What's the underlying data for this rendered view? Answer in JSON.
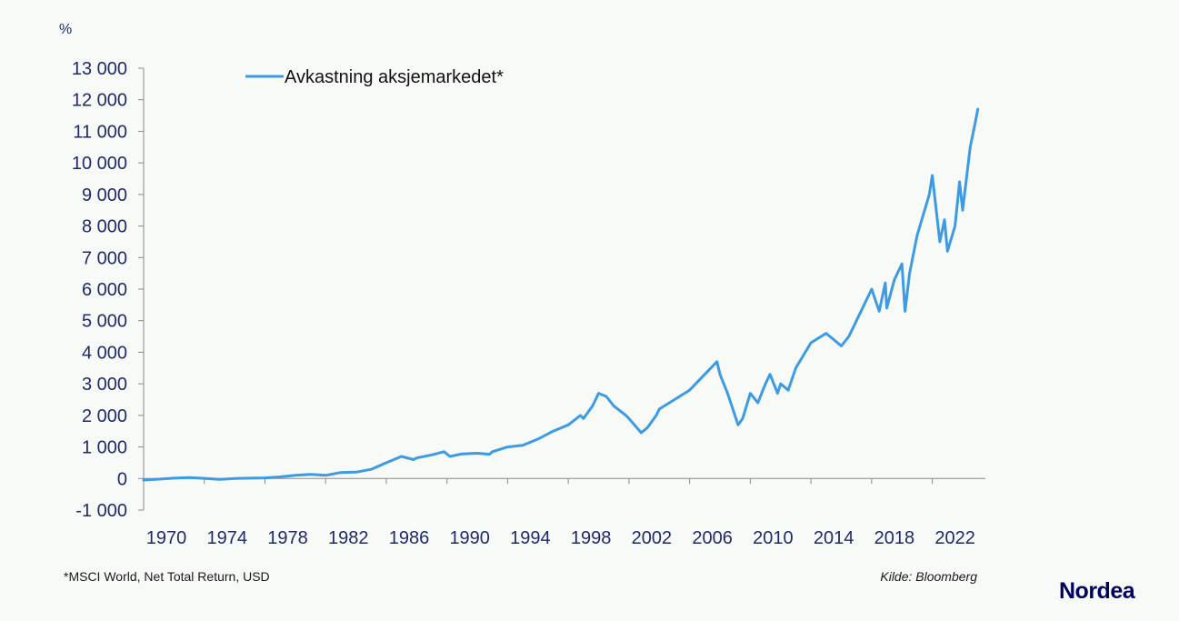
{
  "chart_data": {
    "type": "line",
    "unit_label": "%",
    "ylim": [
      -1000,
      13000
    ],
    "xlim": [
      1970,
      2025.5
    ],
    "y_ticks": [
      -1000,
      0,
      1000,
      2000,
      3000,
      4000,
      5000,
      6000,
      7000,
      8000,
      9000,
      10000,
      11000,
      12000,
      13000
    ],
    "y_tick_labels": [
      "-1 000",
      "0",
      "1 000",
      "2 000",
      "3 000",
      "4 000",
      "5 000",
      "6 000",
      "7 000",
      "8 000",
      "9 000",
      "10 000",
      "11 000",
      "12 000",
      "13 000"
    ],
    "x_ticks": [
      1970,
      1974,
      1978,
      1982,
      1986,
      1990,
      1994,
      1998,
      2002,
      2006,
      2010,
      2014,
      2018,
      2022
    ],
    "x_tick_labels": [
      "1970",
      "1974",
      "1978",
      "1982",
      "1986",
      "1990",
      "1994",
      "1998",
      "2002",
      "2006",
      "2010",
      "2014",
      "2018",
      "2022"
    ],
    "grid": false,
    "legend_position": "top-left",
    "color": "#3d9be3",
    "series": [
      {
        "name": "Avkastning aksjemarkedet*",
        "x": [
          1970,
          1971,
          1972,
          1973,
          1974,
          1975,
          1976,
          1977,
          1978,
          1979,
          1980,
          1981,
          1982,
          1983,
          1984,
          1985,
          1986,
          1986.5,
          1987,
          1987.8,
          1988,
          1989,
          1989.8,
          1990.2,
          1991,
          1992,
          1992.8,
          1993,
          1994,
          1995,
          1996,
          1997,
          1998,
          1998.8,
          1999,
          1999.6,
          2000,
          2000.5,
          2001,
          2001.8,
          2002,
          2002.8,
          2003.2,
          2003.8,
          2004,
          2005,
          2006,
          2007,
          2007.8,
          2008,
          2008.5,
          2009.2,
          2009.5,
          2010,
          2010.5,
          2011,
          2011.3,
          2011.8,
          2012,
          2012.5,
          2013,
          2014,
          2015,
          2015.5,
          2016,
          2016.5,
          2017,
          2018,
          2018.5,
          2018.9,
          2019,
          2019.5,
          2020,
          2020.2,
          2020.5,
          2021,
          2021.8,
          2022,
          2022.5,
          2022.8,
          2023,
          2023.5,
          2023.8,
          2024,
          2024.5,
          2024.8,
          2025
        ],
        "values": [
          -50,
          -20,
          10,
          30,
          5,
          -30,
          0,
          10,
          20,
          50,
          100,
          130,
          100,
          190,
          200,
          290,
          500,
          600,
          700,
          600,
          650,
          750,
          850,
          700,
          780,
          800,
          770,
          850,
          1000,
          1050,
          1250,
          1500,
          1700,
          2000,
          1900,
          2300,
          2700,
          2600,
          2300,
          2000,
          1900,
          1450,
          1600,
          2000,
          2200,
          2500,
          2800,
          3300,
          3700,
          3300,
          2700,
          1700,
          1900,
          2700,
          2400,
          3000,
          3300,
          2700,
          3000,
          2800,
          3500,
          4300,
          4600,
          4400,
          4200,
          4500,
          5000,
          6000,
          5300,
          6200,
          5400,
          6300,
          6800,
          5300,
          6500,
          7700,
          9000,
          9600,
          7500,
          8200,
          7200,
          8000,
          9400,
          8500,
          10500,
          11200,
          11700
        ]
      }
    ]
  },
  "footnote": "*MSCI World,  Net Total Return, USD",
  "source": "Kilde: Bloomberg",
  "brand": "Nordea"
}
